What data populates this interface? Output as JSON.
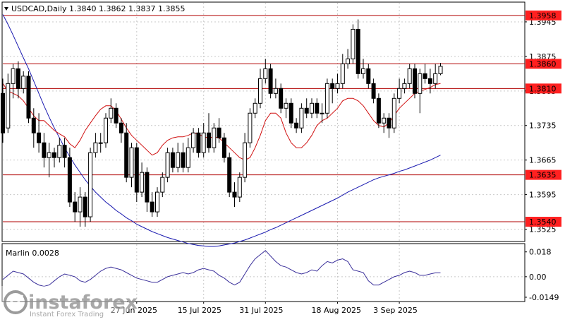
{
  "header": {
    "symbol_line": "USDCAD,Daily  1.3840 1.3862 1.3837 1.3855",
    "indicator_label": "Marlin 0.0028"
  },
  "watermark": {
    "brand": "instaforex",
    "tagline": "Instant Forex Trading"
  },
  "colors": {
    "candle_bull": "#ffffff",
    "candle_bear": "#000000",
    "ma_short": "#d01010",
    "ma_long": "#1a1ab0",
    "level_line": "#b00000",
    "level_label_bg": "#ff2020",
    "oscillator": "#3a2f9a",
    "grid": "#c9c9c9"
  },
  "chart_data": [
    {
      "type": "candlestick",
      "title": "USDCAD,Daily  1.3840 1.3862 1.3837 1.3855",
      "ohlc_last": {
        "open": 1.384,
        "high": 1.3862,
        "low": 1.3837,
        "close": 1.3855
      },
      "x_tick_labels": [
        "27 Jun 2025",
        "15 Jul 2025",
        "31 Jul 2025",
        "18 Aug 2025",
        "3 Sep 2025"
      ],
      "x_tick_index": [
        26,
        39,
        51,
        65,
        77
      ],
      "y_ticks": [
        "1.3945",
        "1.3875",
        "1.3805",
        "1.3735",
        "1.3665",
        "1.3595",
        "1.3525"
      ],
      "ylim": [
        1.35,
        1.3985
      ],
      "grid": true,
      "levels": [
        {
          "value": "1.3958",
          "price": 1.3958
        },
        {
          "value": "1.3860",
          "price": 1.386
        },
        {
          "value": "1.3810",
          "price": 1.381
        },
        {
          "value": "1.3635",
          "price": 1.3635
        },
        {
          "value": "1.3540",
          "price": 1.354
        }
      ],
      "candles": [
        [
          1.38,
          1.372,
          1.383,
          1.37
        ],
        [
          1.373,
          1.382,
          1.384,
          1.372
        ],
        [
          1.382,
          1.385,
          1.386,
          1.379
        ],
        [
          1.385,
          1.381,
          1.3865,
          1.379
        ],
        [
          1.381,
          1.3835,
          1.3845,
          1.38
        ],
        [
          1.3835,
          1.375,
          1.3845,
          1.374
        ],
        [
          1.375,
          1.372,
          1.377,
          1.369
        ],
        [
          1.372,
          1.37,
          1.376,
          1.368
        ],
        [
          1.37,
          1.367,
          1.372,
          1.365
        ],
        [
          1.367,
          1.368,
          1.37,
          1.363
        ],
        [
          1.368,
          1.367,
          1.369,
          1.365
        ],
        [
          1.367,
          1.3695,
          1.371,
          1.366
        ],
        [
          1.3695,
          1.367,
          1.371,
          1.365
        ],
        [
          1.367,
          1.358,
          1.369,
          1.357
        ],
        [
          1.358,
          1.356,
          1.36,
          1.354
        ],
        [
          1.356,
          1.359,
          1.361,
          1.353
        ],
        [
          1.359,
          1.355,
          1.36,
          1.353
        ],
        [
          1.355,
          1.368,
          1.369,
          1.354
        ],
        [
          1.368,
          1.37,
          1.372,
          1.367
        ],
        [
          1.37,
          1.37,
          1.372,
          1.368
        ],
        [
          1.37,
          1.375,
          1.376,
          1.369
        ],
        [
          1.375,
          1.377,
          1.379,
          1.374
        ],
        [
          1.377,
          1.374,
          1.378,
          1.373
        ],
        [
          1.374,
          1.372,
          1.375,
          1.37
        ],
        [
          1.372,
          1.363,
          1.374,
          1.362
        ],
        [
          1.363,
          1.369,
          1.37,
          1.361
        ],
        [
          1.369,
          1.36,
          1.37,
          1.358
        ],
        [
          1.36,
          1.364,
          1.366,
          1.359
        ],
        [
          1.364,
          1.358,
          1.365,
          1.356
        ],
        [
          1.358,
          1.356,
          1.36,
          1.355
        ],
        [
          1.356,
          1.36,
          1.361,
          1.355
        ],
        [
          1.36,
          1.363,
          1.364,
          1.359
        ],
        [
          1.363,
          1.368,
          1.369,
          1.362
        ],
        [
          1.368,
          1.365,
          1.369,
          1.364
        ],
        [
          1.365,
          1.368,
          1.37,
          1.364
        ],
        [
          1.368,
          1.365,
          1.37,
          1.364
        ],
        [
          1.365,
          1.369,
          1.371,
          1.364
        ],
        [
          1.369,
          1.372,
          1.373,
          1.368
        ],
        [
          1.372,
          1.368,
          1.373,
          1.367
        ],
        [
          1.368,
          1.372,
          1.374,
          1.367
        ],
        [
          1.372,
          1.369,
          1.376,
          1.368
        ],
        [
          1.369,
          1.373,
          1.374,
          1.368
        ],
        [
          1.373,
          1.371,
          1.375,
          1.37
        ],
        [
          1.371,
          1.367,
          1.372,
          1.366
        ],
        [
          1.367,
          1.36,
          1.368,
          1.359
        ],
        [
          1.36,
          1.359,
          1.362,
          1.357
        ],
        [
          1.359,
          1.363,
          1.364,
          1.358
        ],
        [
          1.363,
          1.37,
          1.372,
          1.362
        ],
        [
          1.37,
          1.376,
          1.377,
          1.369
        ],
        [
          1.376,
          1.378,
          1.379,
          1.375
        ],
        [
          1.378,
          1.383,
          1.385,
          1.377
        ],
        [
          1.383,
          1.385,
          1.387,
          1.382
        ],
        [
          1.385,
          1.38,
          1.386,
          1.379
        ],
        [
          1.38,
          1.381,
          1.383,
          1.379
        ],
        [
          1.381,
          1.377,
          1.382,
          1.376
        ],
        [
          1.377,
          1.378,
          1.379,
          1.375
        ],
        [
          1.378,
          1.374,
          1.379,
          1.373
        ],
        [
          1.374,
          1.373,
          1.375,
          1.372
        ],
        [
          1.373,
          1.377,
          1.378,
          1.372
        ],
        [
          1.377,
          1.376,
          1.379,
          1.375
        ],
        [
          1.376,
          1.378,
          1.379,
          1.375
        ],
        [
          1.378,
          1.376,
          1.379,
          1.375
        ],
        [
          1.376,
          1.376,
          1.378,
          1.374
        ],
        [
          1.376,
          1.382,
          1.383,
          1.375
        ],
        [
          1.382,
          1.381,
          1.383,
          1.378
        ],
        [
          1.381,
          1.382,
          1.384,
          1.38
        ],
        [
          1.382,
          1.386,
          1.388,
          1.381
        ],
        [
          1.386,
          1.387,
          1.389,
          1.385
        ],
        [
          1.387,
          1.393,
          1.394,
          1.386
        ],
        [
          1.393,
          1.384,
          1.395,
          1.383
        ],
        [
          1.384,
          1.385,
          1.387,
          1.383
        ],
        [
          1.385,
          1.382,
          1.386,
          1.381
        ],
        [
          1.382,
          1.379,
          1.383,
          1.378
        ],
        [
          1.379,
          1.374,
          1.38,
          1.373
        ],
        [
          1.374,
          1.375,
          1.376,
          1.372
        ],
        [
          1.375,
          1.373,
          1.376,
          1.371
        ],
        [
          1.373,
          1.379,
          1.38,
          1.372
        ],
        [
          1.379,
          1.381,
          1.383,
          1.378
        ],
        [
          1.381,
          1.382,
          1.383,
          1.38
        ],
        [
          1.382,
          1.385,
          1.386,
          1.381
        ],
        [
          1.385,
          1.38,
          1.386,
          1.379
        ],
        [
          1.38,
          1.384,
          1.385,
          1.376
        ],
        [
          1.384,
          1.383,
          1.386,
          1.382
        ],
        [
          1.383,
          1.382,
          1.385,
          1.38
        ],
        [
          1.382,
          1.384,
          1.386,
          1.381
        ],
        [
          1.384,
          1.3855,
          1.3862,
          1.3837
        ]
      ],
      "ma_short": [
        1.382,
        1.3805,
        1.38,
        1.3795,
        1.3785,
        1.377,
        1.3755,
        1.3745,
        1.3745,
        1.3735,
        1.3725,
        1.3718,
        1.3712,
        1.3698,
        1.369,
        1.3705,
        1.3725,
        1.374,
        1.3755,
        1.3768,
        1.3775,
        1.3775,
        1.3765,
        1.3748,
        1.373,
        1.3715,
        1.3705,
        1.3695,
        1.3685,
        1.3675,
        1.368,
        1.3695,
        1.3705,
        1.371,
        1.3712,
        1.3712,
        1.3715,
        1.372,
        1.3718,
        1.3712,
        1.371,
        1.3712,
        1.371,
        1.37,
        1.369,
        1.368,
        1.367,
        1.3665,
        1.367,
        1.369,
        1.3715,
        1.3745,
        1.376,
        1.376,
        1.375,
        1.372,
        1.37,
        1.369,
        1.369,
        1.37,
        1.3715,
        1.3735,
        1.3745,
        1.375,
        1.376,
        1.377,
        1.3785,
        1.379,
        1.379,
        1.3785,
        1.3775,
        1.376,
        1.3745,
        1.3735,
        1.3732,
        1.374,
        1.3755,
        1.377,
        1.378,
        1.379,
        1.38,
        1.3805,
        1.3808,
        1.3812,
        1.3818,
        1.382
      ],
      "ma_long": [
        1.396,
        1.394,
        1.3918,
        1.3895,
        1.3872,
        1.385,
        1.3825,
        1.38,
        1.3775,
        1.3752,
        1.373,
        1.371,
        1.369,
        1.3672,
        1.3655,
        1.364,
        1.3625,
        1.3612,
        1.36,
        1.359,
        1.358,
        1.3572,
        1.3563,
        1.3556,
        1.3548,
        1.3542,
        1.3535,
        1.353,
        1.3525,
        1.352,
        1.3516,
        1.3512,
        1.3508,
        1.3505,
        1.3502,
        1.3499,
        1.3496,
        1.3494,
        1.3492,
        1.3491,
        1.349,
        1.349,
        1.3491,
        1.3493,
        1.3495,
        1.3497,
        1.35,
        1.3503,
        1.3507,
        1.3511,
        1.3515,
        1.3519,
        1.3524,
        1.3528,
        1.3533,
        1.3538,
        1.3543,
        1.3548,
        1.3553,
        1.3558,
        1.3563,
        1.3568,
        1.3573,
        1.3578,
        1.3583,
        1.3588,
        1.3594,
        1.36,
        1.3605,
        1.361,
        1.3615,
        1.362,
        1.3625,
        1.3629,
        1.3632,
        1.3635,
        1.3638,
        1.3642,
        1.3645,
        1.3649,
        1.3653,
        1.3657,
        1.3661,
        1.3665,
        1.367,
        1.3675
      ]
    },
    {
      "type": "line",
      "name": "Marlin 0.0028",
      "y_ticks": [
        "0.018",
        "0.00",
        "-0.0149"
      ],
      "ylim": [
        -0.018,
        0.024
      ],
      "zero_line": true,
      "values": [
        -0.002,
        0.001,
        0.004,
        0.003,
        0.002,
        -0.001,
        -0.004,
        -0.006,
        -0.007,
        -0.006,
        -0.003,
        0.0,
        0.002,
        0.001,
        0.0,
        -0.003,
        -0.004,
        -0.002,
        0.001,
        0.004,
        0.006,
        0.007,
        0.006,
        0.005,
        0.003,
        0.001,
        -0.001,
        -0.002,
        -0.003,
        -0.004,
        -0.004,
        -0.002,
        0.0,
        0.001,
        0.002,
        0.003,
        0.002,
        0.003,
        0.005,
        0.006,
        0.005,
        0.004,
        0.001,
        -0.001,
        -0.004,
        -0.006,
        -0.004,
        0.002,
        0.008,
        0.013,
        0.016,
        0.019,
        0.015,
        0.011,
        0.008,
        0.007,
        0.005,
        0.003,
        0.002,
        0.003,
        0.005,
        0.004,
        0.008,
        0.011,
        0.01,
        0.012,
        0.013,
        0.011,
        0.005,
        0.004,
        0.003,
        -0.003,
        -0.006,
        -0.006,
        -0.004,
        -0.002,
        0.0,
        0.001,
        0.003,
        0.004,
        0.003,
        0.001,
        0.001,
        0.002,
        0.0028,
        0.0028
      ]
    }
  ]
}
